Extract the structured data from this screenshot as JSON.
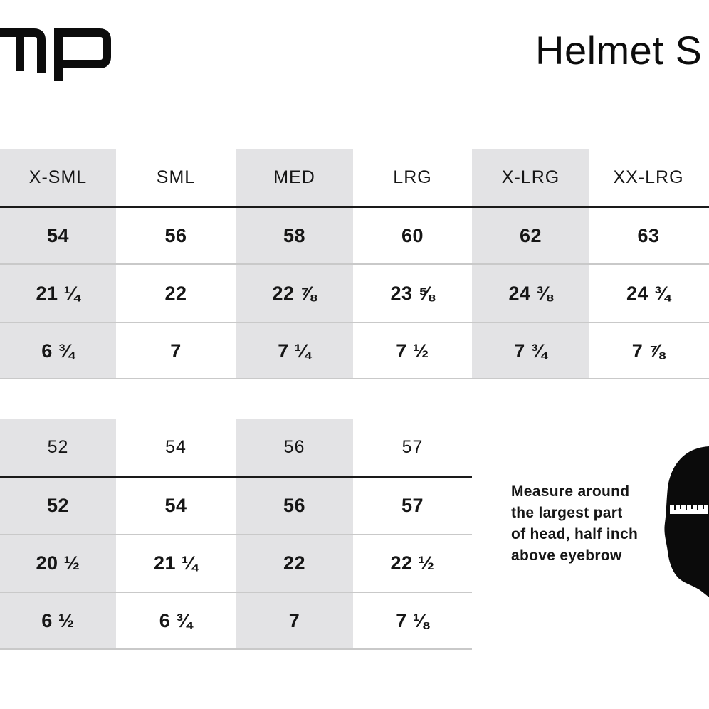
{
  "brand": {
    "logo_text": "mp"
  },
  "title": "Helmet S",
  "table1": {
    "headers": [
      "X-SML",
      "SML",
      "MED",
      "LRG",
      "X-LRG",
      "XX-LRG"
    ],
    "rows": [
      [
        "54",
        "56",
        "58",
        "60",
        "62",
        "63"
      ],
      [
        "21 ¼",
        "22",
        "22 ⅞",
        "23 ⅝",
        "24 ⅜",
        "24 ¾"
      ],
      [
        "6 ¾",
        "7",
        "7 ¼",
        "7 ½",
        "7 ¾",
        "7 ⅞"
      ]
    ]
  },
  "table2": {
    "headers": [
      "52",
      "54",
      "56",
      "57"
    ],
    "rows": [
      [
        "52",
        "54",
        "56",
        "57"
      ],
      [
        "20 ½",
        "21 ¼",
        "22",
        "22 ½"
      ],
      [
        "6 ½",
        "6 ¾",
        "7",
        "7 ⅛"
      ]
    ]
  },
  "measure_note": {
    "line1": "Measure around",
    "line2": "the largest part",
    "line3": "of head, half inch",
    "line4": "above eyebrow"
  },
  "colors": {
    "shade": "#e3e3e5",
    "text": "#161616"
  },
  "icons": [
    "logo-mark",
    "head-measure-icon"
  ]
}
